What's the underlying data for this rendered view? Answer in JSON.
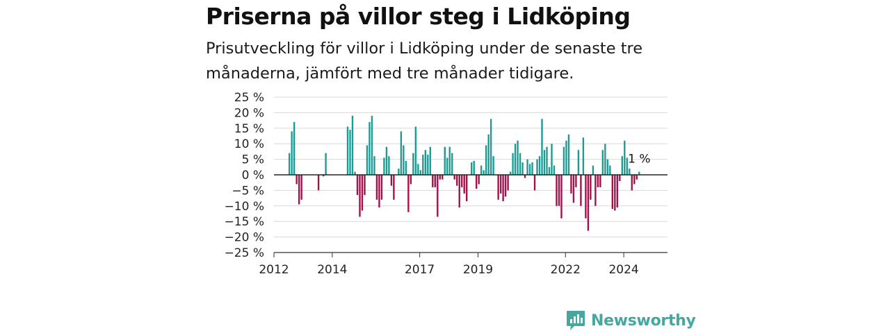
{
  "header": {
    "title": "Priserna på villor steg i Lidköping",
    "subtitle": "Prisutveckling för villor i Lidköping under de senaste tre månaderna, jämfört med tre månader tidigare."
  },
  "brand": {
    "name": "Newsworthy",
    "color": "#46a6a0"
  },
  "colors": {
    "positive": "#1a9c94",
    "negative": "#a3104a",
    "grid": "#d8d8d8",
    "zero_line": "#222222"
  },
  "chart_data": {
    "type": "bar",
    "title": "Priserna på villor steg i Lidköping",
    "subtitle": "Prisutveckling för villor i Lidköping under de senaste tre månaderna, jämfört med tre månader tidigare.",
    "xlabel": "",
    "ylabel": "",
    "ylim": [
      -25,
      25
    ],
    "y_ticks": [
      25,
      20,
      15,
      10,
      5,
      0,
      -5,
      -10,
      -15,
      -20,
      -25
    ],
    "y_tick_labels": [
      "25 %",
      "20 %",
      "15 %",
      "10 %",
      "5 %",
      "0 %",
      "−5 %",
      "−10 %",
      "−15 %",
      "−20 %",
      "−25 %"
    ],
    "x_tick_labels": [
      "2012",
      "2014",
      "2017",
      "2019",
      "2022",
      "2024"
    ],
    "x_tick_years": [
      2012,
      2014,
      2017,
      2019,
      2022,
      2024
    ],
    "x_range": [
      2012.0,
      2025.5
    ],
    "start": "2012-01",
    "grid": true,
    "last_value_label": "1 %",
    "values": [
      null,
      null,
      null,
      null,
      null,
      null,
      7,
      14,
      17,
      -3,
      -9.5,
      -8,
      null,
      null,
      null,
      null,
      null,
      null,
      -5,
      null,
      -0.5,
      7,
      null,
      null,
      null,
      null,
      null,
      null,
      null,
      null,
      15.5,
      14.5,
      19,
      1,
      -6.5,
      -13.5,
      -11.5,
      -6.5,
      9.5,
      17,
      19,
      6,
      -8,
      -10.5,
      -8,
      5.5,
      9,
      6,
      -3.5,
      -8,
      null,
      2,
      14,
      9.5,
      4.5,
      -12,
      -3,
      7,
      15.5,
      3.5,
      1.5,
      6.5,
      8,
      6.5,
      9,
      -4,
      -4,
      -13.5,
      -1.5,
      -1.5,
      9,
      5.5,
      9,
      7,
      -1.5,
      -3.5,
      -10.5,
      -4,
      -6,
      -8.5,
      null,
      4,
      4.5,
      -4.5,
      -3,
      3,
      1.5,
      9.5,
      13,
      18,
      6,
      null,
      -8,
      -6,
      -8.5,
      -7,
      -5,
      1,
      7,
      10,
      11,
      7,
      4,
      -1,
      5,
      3.5,
      4,
      -5,
      5,
      6,
      18,
      8,
      9,
      2.5,
      10,
      3,
      -10,
      -10,
      -14,
      9,
      11,
      13,
      -6,
      -9,
      -4,
      8,
      -10,
      12,
      -14,
      -18,
      -8,
      3,
      -10,
      -4,
      -4,
      8,
      10,
      5,
      3,
      -11,
      -11.5,
      -10.5,
      -2,
      6,
      11,
      5.5,
      2,
      -5,
      -3,
      -1.5,
      1
    ]
  }
}
